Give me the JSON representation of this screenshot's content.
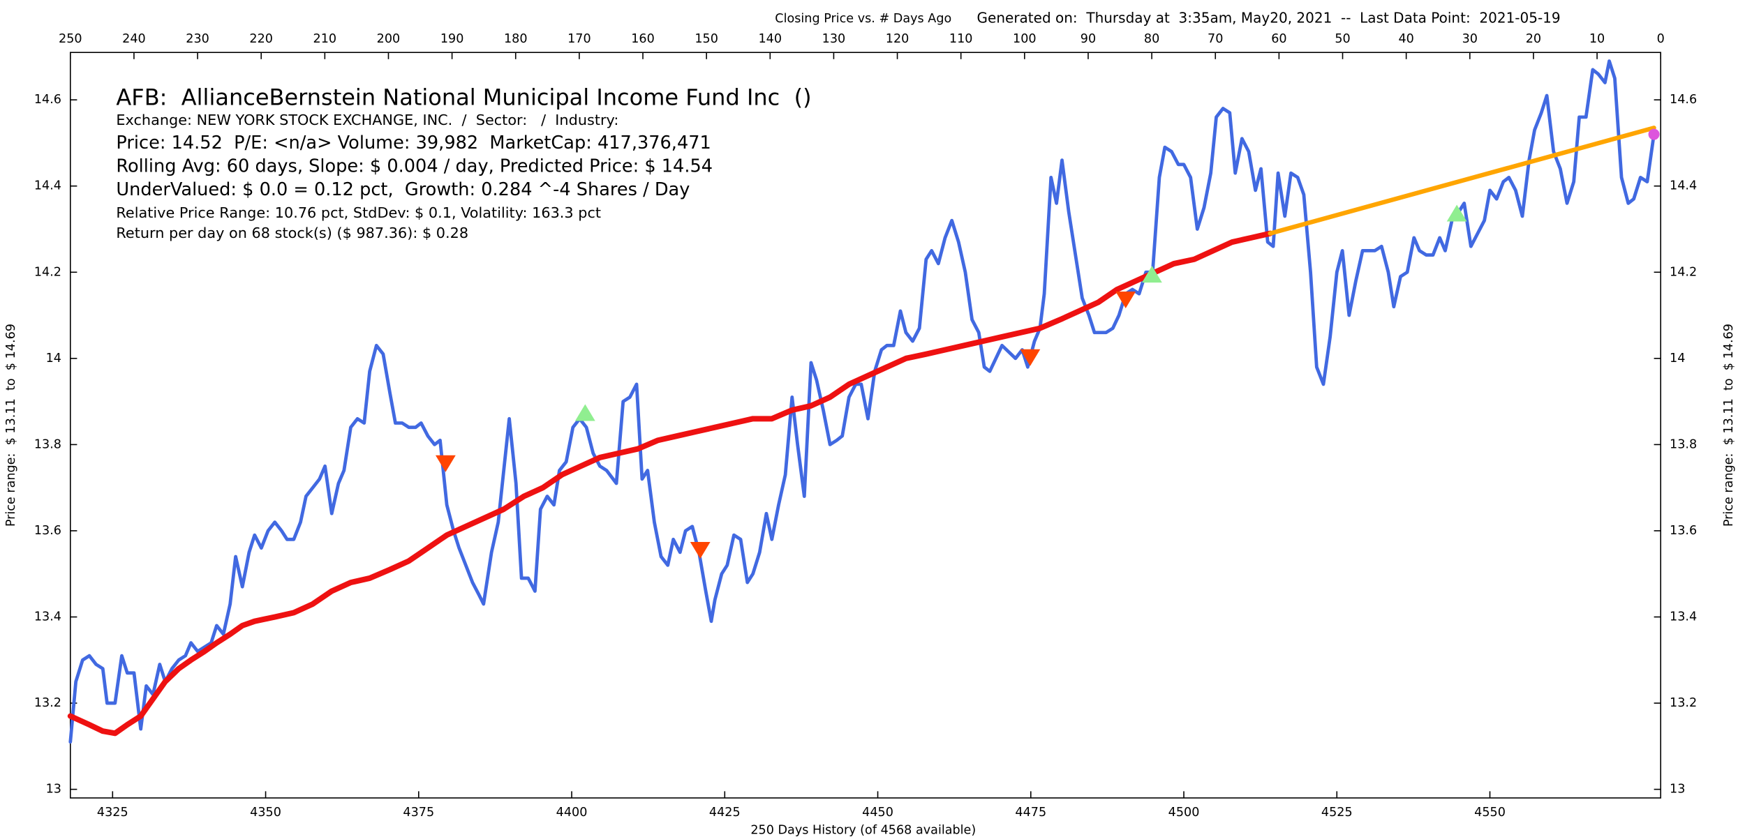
{
  "chart_data": {
    "type": "line",
    "subtitle": "Closing Price vs. # Days Ago",
    "generated": "Generated on:  Thursday at  3:35am, May20, 2021  --  Last Data Point:  2021-05-19",
    "annotations": [
      "AFB:  AllianceBernstein National Municipal Income Fund Inc  ()",
      "Exchange: NEW YORK STOCK EXCHANGE, INC.  /  Sector:   /  Industry:",
      "Price: 14.52  P/E: <n/a> Volume: 39,982  MarketCap: 417,376,471",
      "Rolling Avg: 60 days, Slope: $ 0.004 / day, Predicted Price: $ 14.54",
      "UnderValued: $ 0.0 = 0.12 pct,  Growth: 0.284 ^-4 Shares / Day",
      "Relative Price Range: 10.76 pct, StdDev: $ 0.1, Volatility: 163.3 pct",
      "Return per day on 68 stock(s) ($ 987.36): $ 0.28"
    ],
    "xlabel": "250 Days History (of 4568 available)",
    "ylabel": "Price range:  $ 13.11  to  $ 14.69",
    "y2label": "Price range:  $ 13.11  to  $ 14.69",
    "xlim": [
      4318.1,
      4577.9
    ],
    "xticks": [
      4325,
      4350,
      4375,
      4400,
      4425,
      4450,
      4475,
      4500,
      4525,
      4550
    ],
    "x2lim": [
      250,
      0
    ],
    "x2ticks": [
      250,
      240,
      230,
      220,
      210,
      200,
      190,
      180,
      170,
      160,
      150,
      140,
      130,
      120,
      110,
      100,
      90,
      80,
      70,
      60,
      50,
      40,
      30,
      20,
      10,
      0
    ],
    "ylim": [
      12.98,
      14.71
    ],
    "yticks": [
      13,
      13.2,
      13.4,
      13.6,
      13.8,
      14,
      14.2,
      14.4,
      14.6
    ],
    "grid": false,
    "series": [
      {
        "style": "line",
        "color": "#4169e1",
        "x": [
          4318.1,
          4319.0,
          4320.1,
          4321.2,
          4322.3,
          4323.4,
          4324.1,
          4325.4,
          4326.5,
          4327.4,
          4328.5,
          4329.6,
          4330.5,
          4331.6,
          4332.7,
          4333.6,
          4334.7,
          4335.8,
          4336.9,
          4337.8,
          4338.9,
          4340.0,
          4341.1,
          4342.0,
          4343.1,
          4344.2,
          4345.1,
          4346.2,
          4347.3,
          4348.2,
          4349.3,
          4350.4,
          4351.5,
          4352.6,
          4353.5,
          4354.6,
          4355.7,
          4356.6,
          4357.7,
          4358.8,
          4359.7,
          4360.8,
          4361.9,
          4362.8,
          4363.9,
          4365.0,
          4366.1,
          4367.0,
          4368.1,
          4369.2,
          4370.3,
          4371.2,
          4372.3,
          4373.4,
          4374.5,
          4375.4,
          4376.5,
          4377.6,
          4378.5,
          4379.6,
          4380.7,
          4381.6,
          4382.7,
          4383.8,
          4384.9,
          4385.6,
          4386.9,
          4388.0,
          4388.9,
          4389.8,
          4390.9,
          4391.8,
          4392.9,
          4394.0,
          4394.9,
          4396.0,
          4397.1,
          4398.0,
          4399.1,
          4400.2,
          4401.3,
          4402.4,
          4403.5,
          4404.6,
          4405.7,
          4407.3,
          4408.4,
          4409.5,
          4410.6,
          4411.5,
          4412.4,
          4413.5,
          4414.6,
          4415.7,
          4416.6,
          4417.7,
          4418.6,
          4419.7,
          4420.8,
          4421.9,
          4422.8,
          4423.4,
          4424.5,
          4425.4,
          4426.5,
          4427.6,
          4428.7,
          4429.6,
          4430.7,
          4431.8,
          4432.7,
          4433.8,
          4434.9,
          4436.0,
          4436.9,
          4438.0,
          4439.1,
          4440.0,
          4441.1,
          4442.2,
          4443.3,
          4444.2,
          4445.3,
          4446.4,
          4447.3,
          4448.4,
          4449.5,
          4450.6,
          4451.5,
          4452.6,
          4453.7,
          4454.6,
          4455.7,
          4456.8,
          4457.9,
          4458.8,
          4459.9,
          4461.0,
          4462.1,
          4463.2,
          4464.3,
          4465.4,
          4466.5,
          4467.4,
          4468.3,
          4470.3,
          4472.5,
          4473.6,
          4474.5,
          4475.6,
          4476.5,
          4477.2,
          4478.3,
          4479.2,
          4480.1,
          4481.2,
          4482.3,
          4483.4,
          4484.5,
          4485.4,
          4487.3,
          4488.4,
          4489.4,
          4490.5,
          4491.6,
          4492.7,
          4493.8,
          4494.9,
          4496.0,
          4496.9,
          4498.0,
          4499.1,
          4500.0,
          4501.1,
          4502.2,
          4503.3,
          4504.4,
          4505.3,
          4506.4,
          4507.5,
          4508.4,
          4509.5,
          4510.6,
          4511.7,
          4512.6,
          4513.7,
          4514.6,
          4515.4,
          4516.5,
          4517.5,
          4518.6,
          4519.6,
          4520.7,
          4521.7,
          4522.8,
          4523.9,
          4525.0,
          4525.9,
          4527.0,
          4528.1,
          4529.2,
          4530.3,
          4531.2,
          4532.3,
          4533.4,
          4534.3,
          4535.4,
          4536.5,
          4537.6,
          4538.5,
          4539.6,
          4540.7,
          4541.8,
          4542.7,
          4543.8,
          4544.9,
          4545.8,
          4546.9,
          4548.0,
          4549.1,
          4550.0,
          4551.1,
          4552.2,
          4553.1,
          4554.2,
          4555.3,
          4556.4,
          4557.3,
          4558.4,
          4559.3,
          4560.4,
          4561.5,
          4562.6,
          4563.7,
          4564.6,
          4565.7,
          4566.8,
          4567.7,
          4568.8,
          4569.5,
          4570.4,
          4571.5,
          4572.6,
          4573.5,
          4574.6,
          4575.7,
          4576.8
        ],
        "values": [
          13.11,
          13.25,
          13.3,
          13.31,
          13.29,
          13.28,
          13.2,
          13.2,
          13.31,
          13.27,
          13.27,
          13.14,
          13.24,
          13.22,
          13.29,
          13.25,
          13.28,
          13.3,
          13.31,
          13.34,
          13.32,
          13.33,
          13.34,
          13.38,
          13.36,
          13.43,
          13.54,
          13.47,
          13.55,
          13.59,
          13.56,
          13.6,
          13.62,
          13.6,
          13.58,
          13.58,
          13.62,
          13.68,
          13.7,
          13.72,
          13.75,
          13.64,
          13.71,
          13.74,
          13.84,
          13.86,
          13.85,
          13.97,
          14.03,
          14.01,
          13.92,
          13.85,
          13.85,
          13.84,
          13.84,
          13.85,
          13.82,
          13.8,
          13.81,
          13.66,
          13.6,
          13.56,
          13.52,
          13.48,
          13.45,
          13.43,
          13.55,
          13.62,
          13.74,
          13.86,
          13.71,
          13.49,
          13.49,
          13.46,
          13.65,
          13.68,
          13.66,
          13.74,
          13.76,
          13.84,
          13.86,
          13.84,
          13.78,
          13.75,
          13.74,
          13.71,
          13.9,
          13.91,
          13.94,
          13.72,
          13.74,
          13.62,
          13.54,
          13.52,
          13.58,
          13.55,
          13.6,
          13.61,
          13.55,
          13.46,
          13.39,
          13.44,
          13.5,
          13.52,
          13.59,
          13.58,
          13.48,
          13.5,
          13.55,
          13.64,
          13.58,
          13.66,
          13.73,
          13.91,
          13.8,
          13.68,
          13.99,
          13.95,
          13.88,
          13.8,
          13.81,
          13.82,
          13.91,
          13.94,
          13.94,
          13.86,
          13.97,
          14.02,
          14.03,
          14.03,
          14.11,
          14.06,
          14.04,
          14.07,
          14.23,
          14.25,
          14.22,
          14.28,
          14.32,
          14.27,
          14.2,
          14.09,
          14.06,
          13.98,
          13.97,
          14.03,
          14.0,
          14.02,
          13.98,
          14.04,
          14.07,
          14.15,
          14.42,
          14.36,
          14.46,
          14.34,
          14.24,
          14.14,
          14.1,
          14.06,
          14.06,
          14.07,
          14.1,
          14.15,
          14.16,
          14.15,
          14.2,
          14.2,
          14.42,
          14.49,
          14.48,
          14.45,
          14.45,
          14.42,
          14.3,
          14.35,
          14.43,
          14.56,
          14.58,
          14.57,
          14.43,
          14.51,
          14.48,
          14.39,
          14.44,
          14.27,
          14.26,
          14.43,
          14.33,
          14.43,
          14.42,
          14.38,
          14.2,
          13.98,
          13.94,
          14.05,
          14.2,
          14.25,
          14.1,
          14.18,
          14.25,
          14.25,
          14.25,
          14.26,
          14.2,
          14.12,
          14.19,
          14.2,
          14.28,
          14.25,
          14.24,
          14.24,
          14.28,
          14.25,
          14.32,
          14.34,
          14.36,
          14.26,
          14.29,
          14.32,
          14.39,
          14.37,
          14.41,
          14.42,
          14.39,
          14.33,
          14.46,
          14.53,
          14.57,
          14.61,
          14.48,
          14.44,
          14.36,
          14.41,
          14.56,
          14.56,
          14.67,
          14.66,
          14.64,
          14.69,
          14.65,
          14.42,
          14.36,
          14.37,
          14.42,
          14.41,
          14.52
        ]
      },
      {
        "style": "line",
        "color": "#ee1111",
        "x": [
          4318.1,
          4321.2,
          4323.4,
          4325.4,
          4327.4,
          4329.6,
          4331.6,
          4333.6,
          4335.8,
          4337.8,
          4340.0,
          4342.0,
          4344.2,
          4346.2,
          4348.2,
          4351.5,
          4354.6,
          4357.7,
          4360.8,
          4363.9,
          4367.0,
          4370.3,
          4373.4,
          4376.5,
          4379.6,
          4382.7,
          4385.8,
          4388.9,
          4392.2,
          4395.3,
          4398.4,
          4401.5,
          4404.6,
          4407.7,
          4410.8,
          4414.1,
          4417.2,
          4420.3,
          4423.4,
          4426.5,
          4429.6,
          4432.7,
          4436.0,
          4439.1,
          4442.2,
          4445.3,
          4448.4,
          4451.5,
          4454.6,
          4457.9,
          4461.0,
          4464.1,
          4467.2,
          4470.3,
          4473.4,
          4476.5,
          4479.8,
          4482.9,
          4486.0,
          4489.1,
          4492.2,
          4495.3,
          4498.4,
          4501.7,
          4504.8,
          4507.9,
          4511.0,
          4514.1
        ],
        "values": [
          13.17,
          13.15,
          13.135,
          13.13,
          13.15,
          13.17,
          13.21,
          13.25,
          13.28,
          13.3,
          13.32,
          13.34,
          13.36,
          13.38,
          13.39,
          13.4,
          13.41,
          13.43,
          13.46,
          13.48,
          13.49,
          13.51,
          13.53,
          13.56,
          13.59,
          13.61,
          13.63,
          13.65,
          13.68,
          13.7,
          13.73,
          13.75,
          13.77,
          13.78,
          13.79,
          13.81,
          13.82,
          13.83,
          13.84,
          13.85,
          13.86,
          13.86,
          13.88,
          13.89,
          13.91,
          13.94,
          13.96,
          13.98,
          14.0,
          14.01,
          14.02,
          14.03,
          14.04,
          14.05,
          14.06,
          14.07,
          14.09,
          14.11,
          14.13,
          14.16,
          14.18,
          14.2,
          14.22,
          14.23,
          14.25,
          14.27,
          14.28,
          14.29
        ]
      },
      {
        "style": "line",
        "color": "#ffa500",
        "x": [
          4514.1,
          4576.8
        ],
        "values": [
          14.29,
          14.535
        ]
      },
      {
        "style": "circle",
        "color": "#dd55dd",
        "x": [
          4576.8
        ],
        "values": [
          14.52
        ]
      },
      {
        "style": "triangle-down",
        "color": "#ff4500",
        "x": [
          4379.4,
          4421.0,
          4474.9,
          4490.5
        ],
        "values": [
          13.757,
          13.556,
          14.003,
          14.137
        ]
      },
      {
        "style": "triangle-up",
        "color": "#90ee90",
        "x": [
          4402.2,
          4494.8,
          4544.6
        ],
        "values": [
          13.873,
          14.194,
          14.336
        ]
      }
    ]
  }
}
